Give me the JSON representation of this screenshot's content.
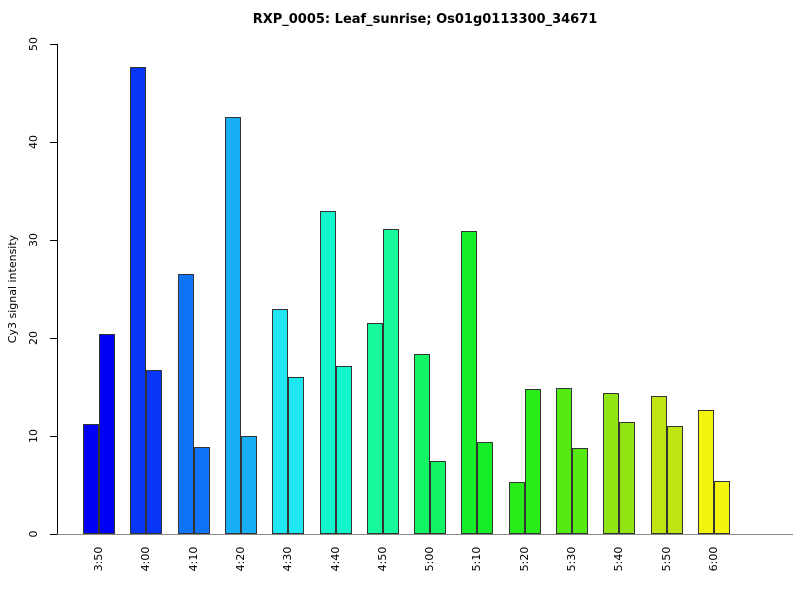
{
  "chart_data": {
    "type": "bar",
    "title": "RXP_0005: Leaf_sunrise; Os01g0113300_34671",
    "xlabel": "",
    "ylabel": "Cy3 signal intensity",
    "ylim": [
      0,
      50
    ],
    "yticks": [
      0,
      10,
      20,
      30,
      40,
      50
    ],
    "grid": false,
    "legend": "none",
    "bar_border_color": "#333333",
    "axis_color": "#000000",
    "baseline_color": "#888888",
    "categories": [
      "3:50",
      "4:00",
      "4:10",
      "4:20",
      "4:30",
      "4:40",
      "4:50",
      "5:00",
      "5:10",
      "5:20",
      "5:30",
      "5:40",
      "5:50",
      "6:00"
    ],
    "series": [
      {
        "name": "bar1",
        "values": [
          11.2,
          47.7,
          26.5,
          42.5,
          23.0,
          33.0,
          21.5,
          18.4,
          30.9,
          5.3,
          14.9,
          14.4,
          14.1,
          12.7
        ]
      },
      {
        "name": "bar2",
        "values": [
          20.4,
          16.7,
          8.9,
          10.0,
          16.0,
          17.1,
          31.1,
          7.4,
          9.4,
          14.8,
          8.8,
          11.4,
          11.0,
          5.4
        ]
      }
    ],
    "group_colors": [
      "#0101F5",
      "#0836F7",
      "#0F74F7",
      "#17AEF5",
      "#1FE7F2",
      "#12F4CB",
      "#16F99D",
      "#10F363",
      "#15EF2A",
      "#27EC18",
      "#55EB12",
      "#90E513",
      "#BEE411",
      "#F4F40E"
    ]
  }
}
